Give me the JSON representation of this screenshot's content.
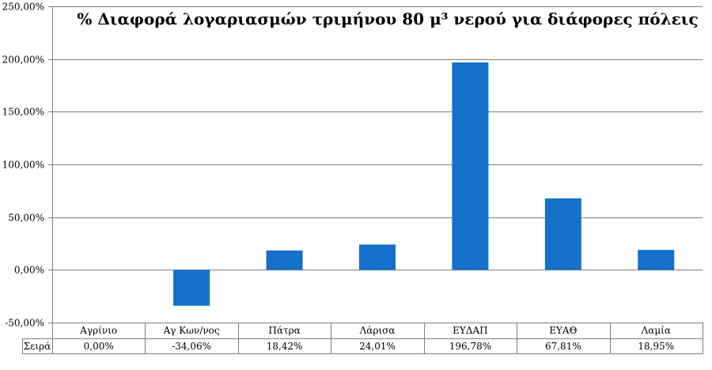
{
  "chart_data": {
    "type": "bar",
    "title": "% Διαφορά λογαριασμών τριμήνου 80 μ³ νερού για διάφορες πόλεις",
    "categories": [
      "Αγρίνιο",
      "Αγ Κων/νος",
      "Πάτρα",
      "Λάρισα",
      "ΕΥΔΑΠ",
      "ΕΥΑΘ",
      "Λαμία"
    ],
    "series": [
      {
        "name": "Σειρά",
        "values": [
          0.0,
          -34.06,
          18.42,
          24.01,
          196.78,
          67.81,
          18.95
        ],
        "labels": [
          "0,00%",
          "-34,06%",
          "18,42%",
          "24,01%",
          "196,78%",
          "67,81%",
          "18,95%"
        ]
      }
    ],
    "ylim": [
      -50,
      250
    ],
    "yticks": [
      -50,
      0,
      50,
      100,
      150,
      200,
      250
    ],
    "ytick_labels": [
      "-50,00%",
      "0,00%",
      "50,00%",
      "100,00%",
      "150,00%",
      "200,00%",
      "250,00%"
    ],
    "grid": true,
    "data_table": true,
    "bar_color": "#1470C8"
  }
}
